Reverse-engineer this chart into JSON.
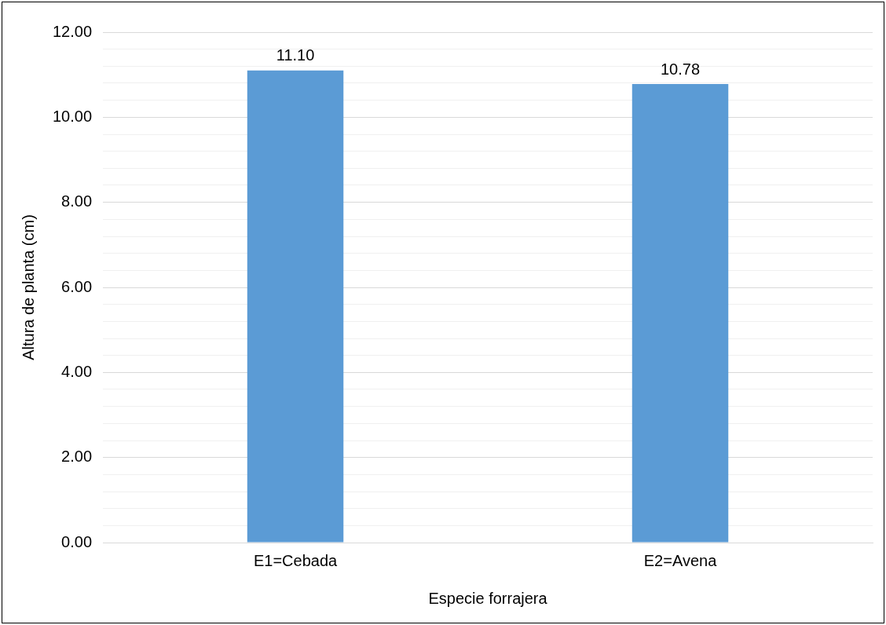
{
  "chart_data": {
    "type": "bar",
    "xlabel": "Especie forrajera",
    "ylabel": "Altura de planta (cm)",
    "categories": [
      "E1=Cebada",
      "E2=Avena"
    ],
    "values": [
      11.1,
      10.78
    ],
    "color": "#5b9bd5",
    "value_labels": [
      "11.10",
      "10.78"
    ],
    "ylim": [
      0,
      12
    ],
    "yticks": [
      {
        "value": 0,
        "label": "0.00"
      },
      {
        "value": 0.4,
        "label": null
      },
      {
        "value": 0.8,
        "label": null
      },
      {
        "value": 1.2,
        "label": null
      },
      {
        "value": 1.6,
        "label": null
      },
      {
        "value": 2,
        "label": "2.00"
      },
      {
        "value": 2.4,
        "label": null
      },
      {
        "value": 2.8,
        "label": null
      },
      {
        "value": 3.2,
        "label": null
      },
      {
        "value": 3.6,
        "label": null
      },
      {
        "value": 4,
        "label": "4.00"
      },
      {
        "value": 4.4,
        "label": null
      },
      {
        "value": 4.8,
        "label": null
      },
      {
        "value": 5.2,
        "label": null
      },
      {
        "value": 5.6,
        "label": null
      },
      {
        "value": 6,
        "label": "6.00"
      },
      {
        "value": 6.4,
        "label": null
      },
      {
        "value": 6.8,
        "label": null
      },
      {
        "value": 7.2,
        "label": null
      },
      {
        "value": 7.6,
        "label": null
      },
      {
        "value": 8,
        "label": "8.00"
      },
      {
        "value": 8.4,
        "label": null
      },
      {
        "value": 8.8,
        "label": null
      },
      {
        "value": 9.2,
        "label": null
      },
      {
        "value": 9.6,
        "label": null
      },
      {
        "value": 10,
        "label": "10.00"
      },
      {
        "value": 10.4,
        "label": null
      },
      {
        "value": 10.8,
        "label": null
      },
      {
        "value": 11.2,
        "label": null
      },
      {
        "value": 11.6,
        "label": null
      },
      {
        "value": 12,
        "label": "12.00"
      }
    ],
    "grid": "y",
    "legend": false
  }
}
